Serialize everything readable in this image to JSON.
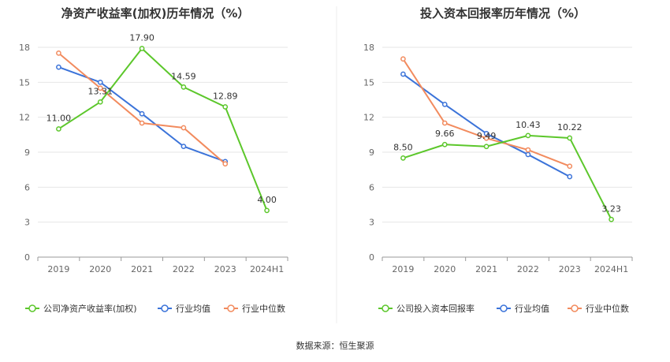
{
  "source_text": "数据来源：恒生聚源",
  "colors": {
    "company": "#5cc72b",
    "industry_avg": "#3b73d9",
    "industry_median": "#f28b5e",
    "grid": "#e6e6e6",
    "axis": "#999999",
    "divider": "#eeeeee"
  },
  "chart_data": [
    {
      "type": "line",
      "title": "净资产收益率(加权)历年情况（%）",
      "categories": [
        "2019",
        "2020",
        "2021",
        "2022",
        "2023",
        "2024H1"
      ],
      "ylim": [
        0,
        18
      ],
      "yticks": [
        0,
        3,
        6,
        9,
        12,
        15,
        18
      ],
      "grid": true,
      "legend_position": "bottom",
      "series": [
        {
          "name": "公司净资产收益率(加权)",
          "color": "#5cc72b",
          "values": [
            11.0,
            13.31,
            17.9,
            14.59,
            12.89,
            4.0
          ],
          "labels": [
            "11.00",
            "13.31",
            "17.90",
            "14.59",
            "12.89",
            "4.00"
          ]
        },
        {
          "name": "行业均值",
          "color": "#3b73d9",
          "values": [
            16.3,
            15.0,
            12.3,
            9.5,
            8.2,
            null
          ]
        },
        {
          "name": "行业中位数",
          "color": "#f28b5e",
          "values": [
            17.5,
            14.5,
            11.5,
            11.1,
            8.0,
            null
          ]
        }
      ]
    },
    {
      "type": "line",
      "title": "投入资本回报率历年情况（%）",
      "categories": [
        "2019",
        "2020",
        "2021",
        "2022",
        "2023",
        "2024H1"
      ],
      "ylim": [
        0,
        18
      ],
      "yticks": [
        0,
        3,
        6,
        9,
        12,
        15,
        18
      ],
      "grid": true,
      "legend_position": "bottom",
      "series": [
        {
          "name": "公司投入资本回报率",
          "color": "#5cc72b",
          "values": [
            8.5,
            9.66,
            9.49,
            10.43,
            10.22,
            3.23
          ],
          "labels": [
            "8.50",
            "9.66",
            "9.49",
            "10.43",
            "10.22",
            "3.23"
          ]
        },
        {
          "name": "行业均值",
          "color": "#3b73d9",
          "values": [
            15.7,
            13.1,
            10.6,
            8.8,
            6.9,
            null
          ]
        },
        {
          "name": "行业中位数",
          "color": "#f28b5e",
          "values": [
            17.0,
            11.5,
            10.2,
            9.2,
            7.8,
            null
          ]
        }
      ]
    }
  ]
}
